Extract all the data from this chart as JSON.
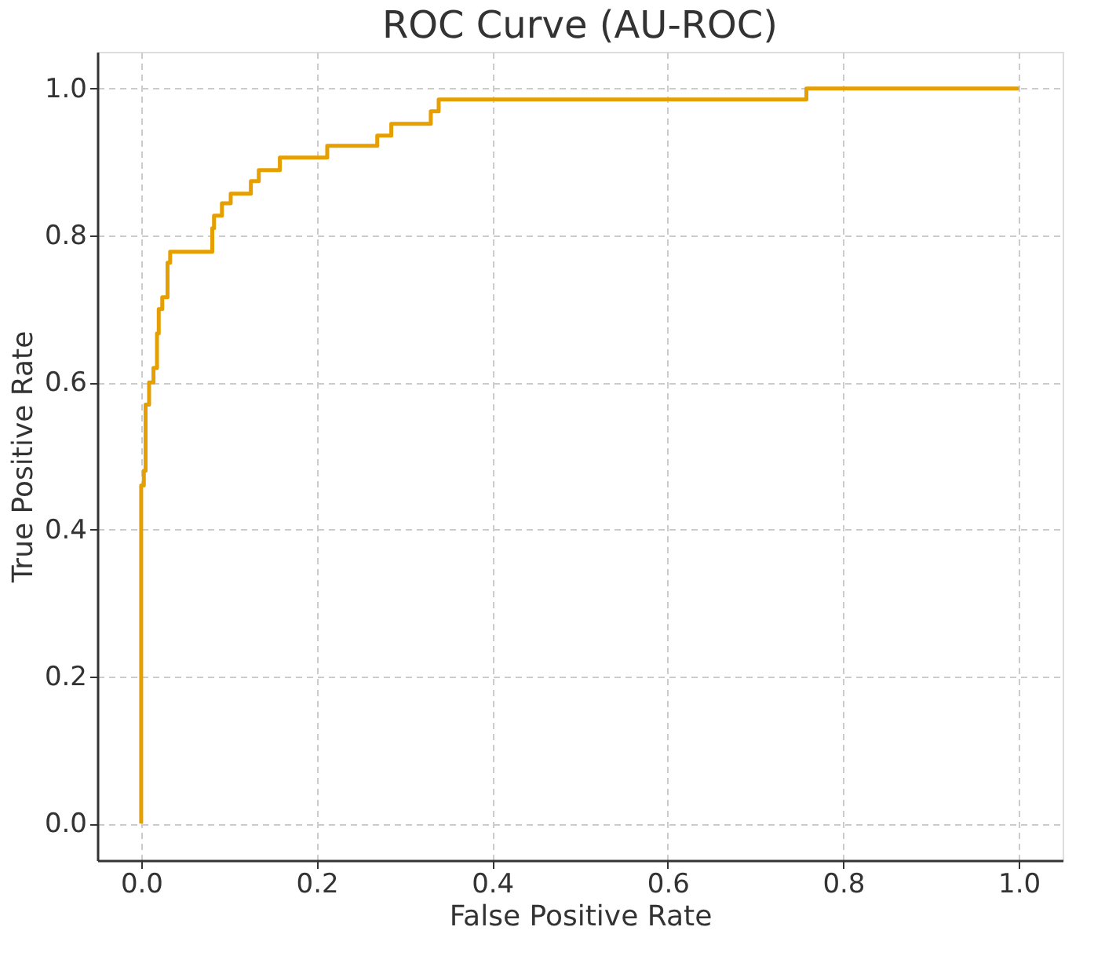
{
  "chart_data": {
    "type": "line",
    "title": "ROC Curve (AU-ROC)",
    "xlabel": "False Positive Rate",
    "ylabel": "True Positive Rate",
    "xlim": [
      -0.05,
      1.05
    ],
    "ylim": [
      -0.05,
      1.05
    ],
    "xticks": [
      {
        "value": 0,
        "label": "0.0"
      },
      0.2,
      0.4,
      0.6,
      0.8,
      {
        "value": 1,
        "label": "1.0"
      }
    ],
    "yticks": [
      {
        "value": 0,
        "label": "0.0"
      },
      0.2,
      0.4,
      0.6,
      0.8,
      {
        "value": 1,
        "label": "1.0"
      }
    ],
    "grid": true,
    "line_style": "dashed",
    "marker": "none",
    "series": [
      {
        "color": "#e69f00",
        "line_style": "solid",
        "x": [
          0,
          0,
          0.003,
          0.003,
          0.005,
          0.005,
          0.009,
          0.009,
          0.014,
          0.014,
          0.018,
          0.018,
          0.02,
          0.02,
          0.024,
          0.024,
          0.03,
          0.03,
          0.033,
          0.033,
          0.081,
          0.081,
          0.083,
          0.083,
          0.092,
          0.092,
          0.102,
          0.102,
          0.125,
          0.125,
          0.134,
          0.134,
          0.158,
          0.158,
          0.212,
          0.212,
          0.269,
          0.269,
          0.285,
          0.285,
          0.33,
          0.33,
          0.339,
          0.339,
          0.758,
          0.758,
          1.0
        ],
        "values": [
          0,
          0.46,
          0.46,
          0.48,
          0.48,
          0.57,
          0.57,
          0.6,
          0.6,
          0.62,
          0.62,
          0.667,
          0.667,
          0.7,
          0.7,
          0.716,
          0.716,
          0.763,
          0.763,
          0.778,
          0.778,
          0.81,
          0.81,
          0.827,
          0.827,
          0.844,
          0.844,
          0.857,
          0.857,
          0.874,
          0.874,
          0.889,
          0.889,
          0.906,
          0.906,
          0.922,
          0.922,
          0.936,
          0.936,
          0.952,
          0.952,
          0.969,
          0.969,
          0.985,
          0.985,
          1.0,
          1.0
        ]
      }
    ]
  }
}
